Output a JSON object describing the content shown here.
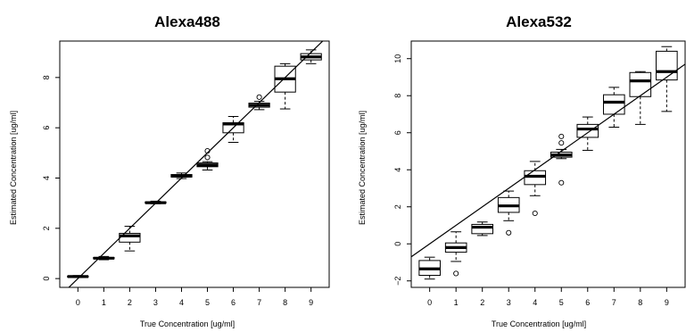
{
  "chart_data": [
    {
      "type": "boxplot",
      "title": "Alexa488",
      "xlabel": "True Concentration [ug/ml]",
      "ylabel": "Estimated Concentration [ug/ml]",
      "categories": [
        "0",
        "1",
        "2",
        "3",
        "4",
        "5",
        "6",
        "7",
        "8",
        "9"
      ],
      "y_ticks": [
        0,
        2,
        4,
        6,
        8
      ],
      "ylim": [
        -0.35,
        9.45
      ],
      "reference_line": {
        "slope": 1,
        "intercept": 0
      },
      "boxes": [
        {
          "x": 0,
          "min": 0.04,
          "q1": 0.06,
          "median": 0.08,
          "q3": 0.1,
          "max": 0.12,
          "outliers": []
        },
        {
          "x": 1,
          "min": 0.75,
          "q1": 0.79,
          "median": 0.81,
          "q3": 0.84,
          "max": 0.88,
          "outliers": []
        },
        {
          "x": 2,
          "min": 1.1,
          "q1": 1.45,
          "median": 1.7,
          "q3": 1.8,
          "max": 2.08,
          "outliers": []
        },
        {
          "x": 3,
          "min": 2.98,
          "q1": 3.0,
          "median": 3.02,
          "q3": 3.05,
          "max": 3.08,
          "outliers": []
        },
        {
          "x": 4,
          "min": 3.98,
          "q1": 4.04,
          "median": 4.08,
          "q3": 4.14,
          "max": 4.2,
          "outliers": []
        },
        {
          "x": 5,
          "min": 4.32,
          "q1": 4.45,
          "median": 4.52,
          "q3": 4.6,
          "max": 4.65,
          "outliers": [
            4.82,
            5.08
          ]
        },
        {
          "x": 6,
          "min": 5.42,
          "q1": 5.8,
          "median": 6.15,
          "q3": 6.2,
          "max": 6.45,
          "outliers": []
        },
        {
          "x": 7,
          "min": 6.72,
          "q1": 6.82,
          "median": 6.9,
          "q3": 6.98,
          "max": 7.05,
          "outliers": [
            7.22
          ]
        },
        {
          "x": 8,
          "min": 6.75,
          "q1": 7.42,
          "median": 7.95,
          "q3": 8.45,
          "max": 8.55,
          "outliers": []
        },
        {
          "x": 9,
          "min": 8.55,
          "q1": 8.7,
          "median": 8.82,
          "q3": 8.95,
          "max": 9.1,
          "outliers": []
        }
      ]
    },
    {
      "type": "boxplot",
      "title": "Alexa532",
      "xlabel": "True Concentration [ug/ml]",
      "ylabel": "Estimated Concentration [ug/ml]",
      "categories": [
        "0",
        "1",
        "2",
        "3",
        "4",
        "5",
        "6",
        "7",
        "8",
        "9"
      ],
      "y_ticks": [
        -2,
        0,
        2,
        4,
        6,
        8,
        10
      ],
      "ylim": [
        -2.35,
        10.95
      ],
      "reference_line": {
        "slope": 1,
        "intercept": 0
      },
      "boxes": [
        {
          "x": 0,
          "min": -1.9,
          "q1": -1.7,
          "median": -1.35,
          "q3": -0.9,
          "max": -0.72,
          "outliers": []
        },
        {
          "x": 1,
          "min": -0.95,
          "q1": -0.45,
          "median": -0.2,
          "q3": 0.05,
          "max": 0.65,
          "outliers": [
            -1.6
          ]
        },
        {
          "x": 2,
          "min": 0.45,
          "q1": 0.55,
          "median": 0.9,
          "q3": 1.05,
          "max": 1.18,
          "outliers": []
        },
        {
          "x": 3,
          "min": 1.25,
          "q1": 1.7,
          "median": 2.05,
          "q3": 2.5,
          "max": 2.85,
          "outliers": [
            0.6
          ]
        },
        {
          "x": 4,
          "min": 2.6,
          "q1": 3.2,
          "median": 3.65,
          "q3": 3.95,
          "max": 4.45,
          "outliers": [
            1.65
          ]
        },
        {
          "x": 5,
          "min": 4.6,
          "q1": 4.68,
          "median": 4.8,
          "q3": 4.95,
          "max": 5.1,
          "outliers": [
            3.3,
            5.45,
            5.8
          ]
        },
        {
          "x": 6,
          "min": 5.05,
          "q1": 5.75,
          "median": 6.2,
          "q3": 6.45,
          "max": 6.85,
          "outliers": []
        },
        {
          "x": 7,
          "min": 6.3,
          "q1": 7.0,
          "median": 7.65,
          "q3": 8.05,
          "max": 8.45,
          "outliers": []
        },
        {
          "x": 8,
          "min": 6.45,
          "q1": 7.95,
          "median": 8.8,
          "q3": 9.25,
          "max": 9.3,
          "outliers": []
        },
        {
          "x": 9,
          "min": 7.15,
          "q1": 8.85,
          "median": 9.3,
          "q3": 10.4,
          "max": 10.65,
          "outliers": []
        }
      ]
    }
  ]
}
